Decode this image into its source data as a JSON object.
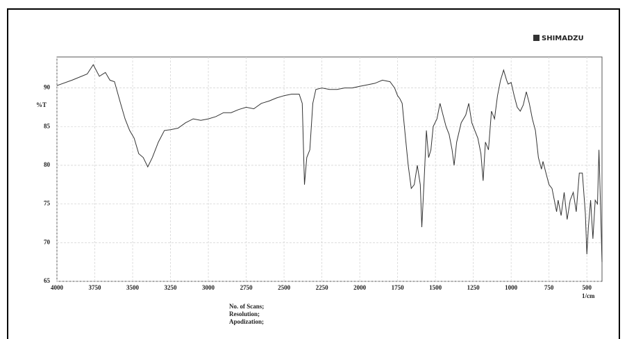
{
  "chart_data": {
    "type": "line",
    "brand": "SHIMADZU",
    "y_label": "%T",
    "x_label": "1/cm",
    "footer": [
      "No. of Scans;",
      "Resolution;",
      "Apodization;"
    ],
    "x": [
      4000,
      3900,
      3800,
      3760,
      3720,
      3680,
      3650,
      3620,
      3580,
      3550,
      3520,
      3490,
      3460,
      3430,
      3400,
      3370,
      3330,
      3290,
      3250,
      3200,
      3150,
      3100,
      3050,
      3000,
      2950,
      2900,
      2850,
      2800,
      2750,
      2700,
      2650,
      2600,
      2550,
      2500,
      2450,
      2400,
      2380,
      2365,
      2350,
      2330,
      2310,
      2290,
      2250,
      2200,
      2150,
      2100,
      2050,
      2000,
      1950,
      1900,
      1850,
      1800,
      1770,
      1750,
      1735,
      1720,
      1700,
      1680,
      1660,
      1640,
      1620,
      1600,
      1590,
      1575,
      1560,
      1545,
      1530,
      1515,
      1490,
      1470,
      1450,
      1430,
      1410,
      1390,
      1377,
      1360,
      1330,
      1300,
      1280,
      1260,
      1240,
      1220,
      1200,
      1185,
      1170,
      1150,
      1130,
      1110,
      1090,
      1070,
      1050,
      1030,
      1020,
      1000,
      980,
      960,
      940,
      920,
      900,
      880,
      860,
      840,
      820,
      800,
      790,
      770,
      750,
      730,
      710,
      700,
      690,
      670,
      650,
      630,
      610,
      590,
      570,
      550,
      530,
      510,
      500,
      490,
      475,
      460,
      445,
      430,
      420,
      410,
      400
    ],
    "series": [
      {
        "name": "spectrum",
        "color": "#333333",
        "values": [
          90.3,
          91,
          91.8,
          93,
          91.5,
          92,
          91,
          90.8,
          88,
          86,
          84.5,
          83.5,
          81.5,
          81,
          79.8,
          81,
          83,
          84.5,
          84.6,
          84.8,
          85.5,
          86,
          85.8,
          86,
          86.3,
          86.8,
          86.8,
          87.2,
          87.5,
          87.3,
          88,
          88.3,
          88.7,
          89,
          89.2,
          89.2,
          88,
          77.5,
          81,
          82,
          88,
          89.8,
          90,
          89.8,
          89.8,
          90,
          90,
          90.2,
          90.4,
          90.6,
          91,
          90.8,
          90,
          89,
          88.6,
          88,
          84,
          80,
          77,
          77.5,
          80,
          77.5,
          72,
          78,
          84.5,
          81,
          82,
          85,
          86,
          88,
          86.5,
          85,
          84,
          82,
          80,
          83,
          85.5,
          86.5,
          88,
          85.5,
          84.5,
          83.5,
          81.5,
          78,
          83,
          82,
          87,
          86,
          89,
          91,
          92.3,
          91,
          90.5,
          90.7,
          89,
          87.5,
          87,
          87.8,
          89.5,
          88,
          86,
          84.5,
          81,
          79.5,
          80.5,
          79,
          77.5,
          77,
          75,
          74,
          75.5,
          73.5,
          76.5,
          73,
          75.5,
          76.5,
          74,
          79,
          79,
          73.8,
          68.5,
          72,
          75.5,
          70.5,
          75.5,
          75,
          82,
          75,
          67.5
        ]
      }
    ],
    "xlim": [
      4000,
      400
    ],
    "ylim": [
      65,
      94
    ],
    "xticks": [
      4000,
      3750,
      3500,
      3250,
      3000,
      2750,
      2500,
      2250,
      2000,
      1750,
      1500,
      1250,
      1000,
      750,
      500
    ],
    "yticks": [
      65,
      70,
      75,
      80,
      85,
      90
    ],
    "grid": true
  }
}
